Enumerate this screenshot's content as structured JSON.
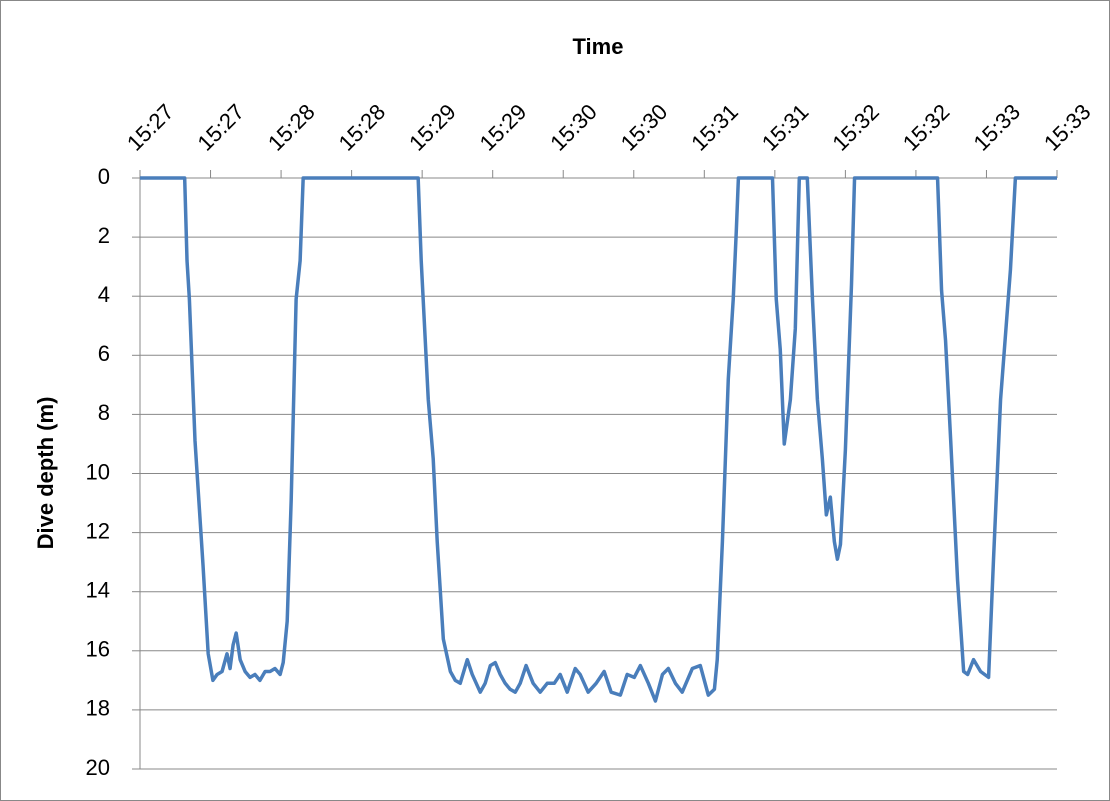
{
  "chart_data": {
    "type": "line",
    "title": "Time",
    "y_label": "Dive depth (m)",
    "x": [
      0,
      19,
      20,
      21,
      23.4,
      26.8,
      29,
      31,
      32.8,
      34.9,
      37,
      38.3,
      39.6,
      40.9,
      42.6,
      44.7,
      46.8,
      48.9,
      51,
      53.2,
      55.3,
      57.4,
      59.6,
      60.9,
      62.6,
      64.3,
      66.4,
      68.1,
      69.4,
      118.3,
      119.6,
      122.6,
      124.7,
      126.4,
      129,
      132,
      134.1,
      136.2,
      139.2,
      141.3,
      144.7,
      146.8,
      149,
      151.1,
      153.2,
      155.3,
      157.4,
      159.6,
      161.7,
      164.2,
      167.2,
      170.2,
      173.2,
      176.2,
      178.7,
      181.7,
      185.1,
      187.2,
      190.6,
      194,
      197.4,
      200.4,
      204.3,
      207.2,
      210.2,
      212.8,
      216.2,
      219.2,
      222.2,
      224.7,
      227.7,
      230.6,
      234.9,
      238.3,
      241.7,
      244.3,
      245.5,
      247.7,
      250.2,
      252.3,
      253.6,
      254.5,
      269,
      270.6,
      272.3,
      274,
      276.6,
      278.7,
      280.4,
      283.8,
      286,
      288.1,
      290.2,
      291.9,
      293.6,
      295.3,
      296.6,
      297.9,
      300,
      302.6,
      303.9,
      339.2,
      340.9,
      342.6,
      344.8,
      347.7,
      350.3,
      352,
      354.5,
      357.5,
      360.9,
      363,
      366,
      370.2,
      372.3,
      390
    ],
    "series": [
      {
        "name": "Dive depth",
        "color": "#4a7ebb",
        "values": [
          0,
          0,
          2.8,
          4.1,
          8.9,
          13.1,
          16.1,
          17,
          16.8,
          16.7,
          16.1,
          16.6,
          15.8,
          15.4,
          16.3,
          16.7,
          16.9,
          16.8,
          17,
          16.7,
          16.7,
          16.6,
          16.8,
          16.4,
          15,
          10.9,
          4.1,
          2.8,
          0,
          0,
          2.8,
          7.5,
          9.5,
          12.3,
          15.6,
          16.7,
          17,
          17.1,
          16.3,
          16.8,
          17.4,
          17.1,
          16.5,
          16.4,
          16.8,
          17.1,
          17.3,
          17.4,
          17.1,
          16.5,
          17.1,
          17.4,
          17.1,
          17.1,
          16.8,
          17.4,
          16.6,
          16.8,
          17.4,
          17.1,
          16.7,
          17.4,
          17.5,
          16.8,
          16.9,
          16.5,
          17.1,
          17.7,
          16.8,
          16.6,
          17.1,
          17.4,
          16.6,
          16.5,
          17.5,
          17.3,
          16.3,
          12.3,
          6.8,
          4.1,
          1.8,
          0,
          0,
          4.1,
          5.8,
          9,
          7.5,
          5.1,
          0,
          0,
          4.1,
          7.5,
          9.5,
          11.4,
          10.8,
          12.3,
          12.9,
          12.4,
          9.2,
          3.6,
          0,
          0,
          3.8,
          5.5,
          8.9,
          13.6,
          16.7,
          16.8,
          16.3,
          16.7,
          16.9,
          12.9,
          7.5,
          3.1,
          0,
          0
        ]
      }
    ],
    "xlim": [
      0,
      390
    ],
    "xticks": [
      {
        "value": 0,
        "label": "15:27"
      },
      {
        "value": 30,
        "label": "15:27"
      },
      {
        "value": 60,
        "label": "15:28"
      },
      {
        "value": 90,
        "label": "15:28"
      },
      {
        "value": 120,
        "label": "15:29"
      },
      {
        "value": 150,
        "label": "15:29"
      },
      {
        "value": 180,
        "label": "15:30"
      },
      {
        "value": 210,
        "label": "15:30"
      },
      {
        "value": 240,
        "label": "15:31"
      },
      {
        "value": 270,
        "label": "15:31"
      },
      {
        "value": 300,
        "label": "15:32"
      },
      {
        "value": 330,
        "label": "15:32"
      },
      {
        "value": 360,
        "label": "15:33"
      },
      {
        "value": 390,
        "label": "15:33"
      }
    ],
    "ylim": [
      0,
      20
    ],
    "y_inverted": true,
    "yticks": [
      0,
      2,
      4,
      6,
      8,
      10,
      12,
      14,
      16,
      18,
      20
    ],
    "grid": true
  }
}
